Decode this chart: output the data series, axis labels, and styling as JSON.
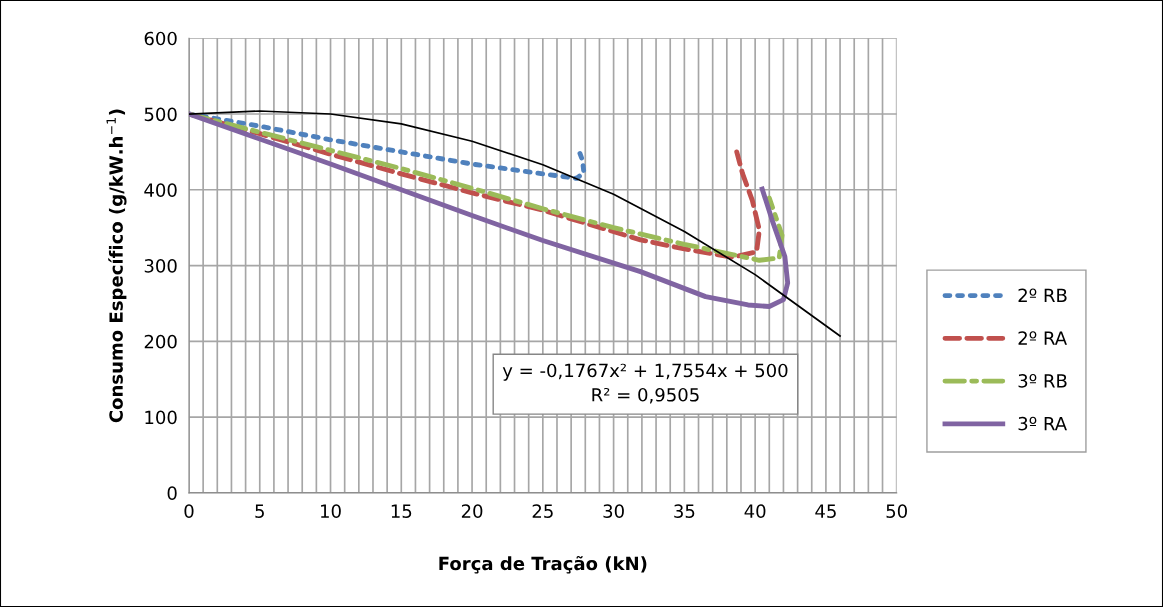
{
  "chart_data": {
    "type": "line",
    "xlabel": "Força de Tração (kN)",
    "ylabel": "Consumo Específico (g/kW.h$^{−1}$)",
    "xlim": [
      0,
      50
    ],
    "ylim": [
      0,
      600
    ],
    "xticks": [
      0,
      {
        "value": 1,
        "label": null
      },
      {
        "value": 2,
        "label": null
      },
      {
        "value": 3,
        "label": null
      },
      {
        "value": 4,
        "label": null
      },
      5,
      {
        "value": 6,
        "label": null
      },
      {
        "value": 7,
        "label": null
      },
      {
        "value": 8,
        "label": null
      },
      {
        "value": 9,
        "label": null
      },
      10,
      {
        "value": 11,
        "label": null
      },
      {
        "value": 12,
        "label": null
      },
      {
        "value": 13,
        "label": null
      },
      {
        "value": 14,
        "label": null
      },
      15,
      {
        "value": 16,
        "label": null
      },
      {
        "value": 17,
        "label": null
      },
      {
        "value": 18,
        "label": null
      },
      {
        "value": 19,
        "label": null
      },
      20,
      {
        "value": 21,
        "label": null
      },
      {
        "value": 22,
        "label": null
      },
      {
        "value": 23,
        "label": null
      },
      {
        "value": 24,
        "label": null
      },
      25,
      {
        "value": 26,
        "label": null
      },
      {
        "value": 27,
        "label": null
      },
      {
        "value": 28,
        "label": null
      },
      {
        "value": 29,
        "label": null
      },
      30,
      {
        "value": 31,
        "label": null
      },
      {
        "value": 32,
        "label": null
      },
      {
        "value": 33,
        "label": null
      },
      {
        "value": 34,
        "label": null
      },
      35,
      {
        "value": 36,
        "label": null
      },
      {
        "value": 37,
        "label": null
      },
      {
        "value": 38,
        "label": null
      },
      {
        "value": 39,
        "label": null
      },
      40,
      {
        "value": 41,
        "label": null
      },
      {
        "value": 42,
        "label": null
      },
      {
        "value": 43,
        "label": null
      },
      {
        "value": 44,
        "label": null
      },
      45,
      {
        "value": 46,
        "label": null
      },
      {
        "value": 47,
        "label": null
      },
      {
        "value": 48,
        "label": null
      },
      {
        "value": 49,
        "label": null
      },
      50
    ],
    "yticks": [
      0,
      100,
      200,
      300,
      400,
      500,
      600
    ],
    "grid": true,
    "legend": "right",
    "marker": "none",
    "annotations": [
      "y = -0,1767x² + 1,7554x + 500\nR² = 0,9505"
    ],
    "series": [
      {
        "name": "2º RB",
        "color": "#4f81bd",
        "line_style": "dotted",
        "x": [
          0,
          5,
          10,
          15,
          20,
          25,
          27.4,
          27.9,
          27.8,
          27.5
        ],
        "values": [
          500,
          484,
          466,
          450,
          434,
          421,
          415,
          423,
          439,
          454
        ]
      },
      {
        "name": "2º RA",
        "color": "#c0504d",
        "line_style": "dashed",
        "x": [
          0,
          5,
          10,
          15,
          20,
          25,
          31.9,
          35,
          38.4,
          40.1,
          40.3,
          39.8,
          39.1,
          38.7
        ],
        "values": [
          500,
          474,
          447,
          421,
          396,
          373,
          334,
          322,
          311,
          318,
          347,
          386,
          422,
          450
        ]
      },
      {
        "name": "3º RB",
        "color": "#9bbb59",
        "line_style": "dashdot",
        "x": [
          0,
          5,
          10,
          15,
          20,
          25,
          30,
          35,
          40.3,
          41.7,
          41.9,
          41.0
        ],
        "values": [
          500,
          476,
          452,
          428,
          402,
          375,
          350,
          328,
          307,
          310,
          340,
          389
        ]
      },
      {
        "name": "3º RA",
        "color": "#8064a2",
        "line_style": "solid",
        "x": [
          0,
          10,
          20,
          25,
          31.9,
          36.5,
          39.5,
          41,
          42,
          42.3,
          42.1,
          41.2,
          40.5
        ],
        "values": [
          500,
          434,
          366,
          333,
          292,
          259,
          248,
          246,
          255,
          277,
          312,
          360,
          401
        ]
      },
      {
        "color": "#000000",
        "line_style": "solid",
        "x": [
          0,
          5,
          10,
          15,
          20,
          25,
          30,
          35,
          40,
          46
        ],
        "values": [
          500,
          504,
          500,
          487,
          464,
          433,
          394,
          345,
          288,
          207
        ]
      }
    ]
  }
}
